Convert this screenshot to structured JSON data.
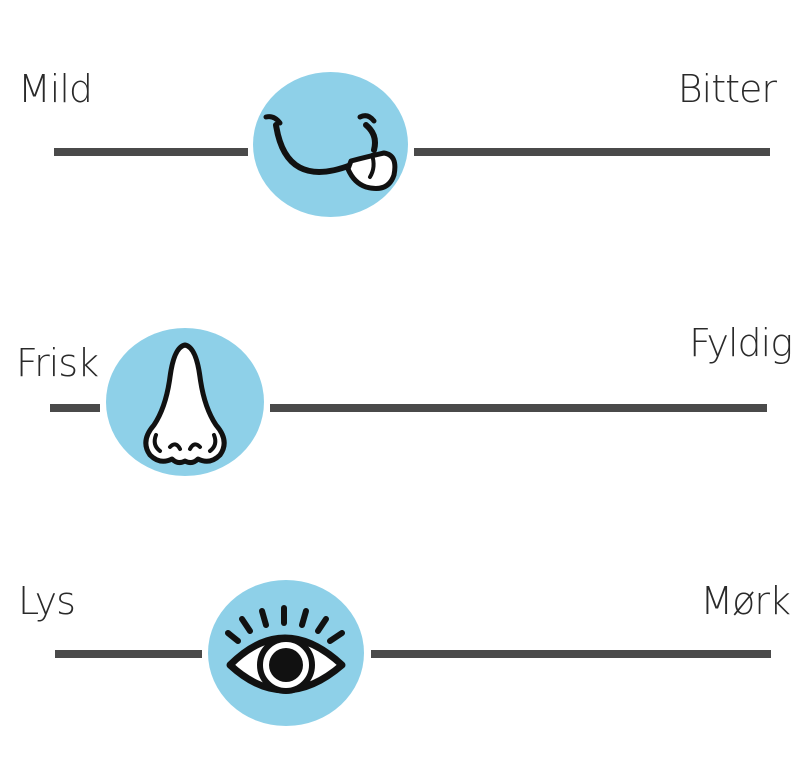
{
  "colors": {
    "knob": "#8ed0e8",
    "track": "#4a4a4a",
    "text": "#2a2a2a",
    "icon_stroke": "#111111"
  },
  "scales": [
    {
      "left_label": "Mild",
      "right_label": "Bitter",
      "icon": "tongue-out-smile-icon",
      "value": 0.43
    },
    {
      "left_label": "Frisk",
      "right_label": "Fyldig",
      "icon": "nose-icon",
      "value": 0.24
    },
    {
      "left_label": "Lys",
      "right_label": "Mørk",
      "icon": "eye-icon",
      "value": 0.32
    }
  ]
}
